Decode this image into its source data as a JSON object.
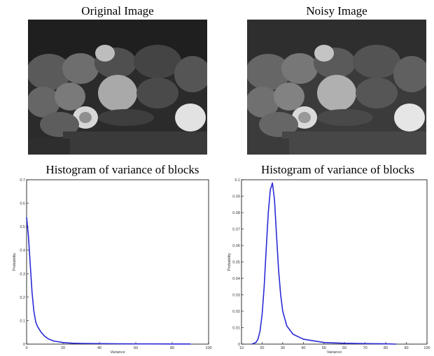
{
  "panels": {
    "original_title": "Original Image",
    "noisy_title": "Noisy Image"
  },
  "chart_data": [
    {
      "type": "line",
      "title": "Histogram of variance of blocks",
      "xlabel": "Variance",
      "ylabel": "Probability",
      "xlim": [
        0,
        100
      ],
      "ylim": [
        0,
        0.7
      ],
      "xticks": [
        0,
        20,
        40,
        60,
        80,
        100
      ],
      "yticks": [
        0,
        0.1,
        0.2,
        0.3,
        0.4,
        0.5,
        0.6,
        0.7
      ],
      "grid": false,
      "series": [
        {
          "color": "#2b2bd6",
          "x": [
            0,
            1,
            2,
            3,
            4,
            5,
            6,
            8,
            10,
            12,
            15,
            20,
            25,
            30,
            40,
            50,
            60,
            70,
            80,
            90
          ],
          "y": [
            0.54,
            0.46,
            0.34,
            0.22,
            0.14,
            0.095,
            0.075,
            0.05,
            0.033,
            0.022,
            0.013,
            0.007,
            0.004,
            0.003,
            0.002,
            0.0015,
            0.001,
            0.001,
            0.0005,
            0.0005
          ]
        }
      ]
    },
    {
      "type": "line",
      "title": "Histogram of variance of blocks",
      "xlabel": "Variance",
      "ylabel": "Probability",
      "xlim": [
        10,
        100
      ],
      "ylim": [
        0,
        0.1
      ],
      "xticks": [
        10,
        20,
        30,
        40,
        50,
        60,
        70,
        80,
        90,
        100
      ],
      "yticks": [
        0,
        0.01,
        0.02,
        0.03,
        0.04,
        0.05,
        0.06,
        0.07,
        0.08,
        0.09,
        0.1
      ],
      "grid": false,
      "series": [
        {
          "color": "#2b2bd6",
          "x": [
            15,
            17,
            18,
            19,
            20,
            21,
            22,
            23,
            24,
            25,
            26,
            27,
            28,
            29,
            30,
            32,
            35,
            40,
            50,
            60,
            70,
            80,
            85
          ],
          "y": [
            0,
            0.001,
            0.003,
            0.008,
            0.018,
            0.035,
            0.058,
            0.08,
            0.094,
            0.098,
            0.088,
            0.066,
            0.045,
            0.03,
            0.02,
            0.011,
            0.006,
            0.003,
            0.001,
            0.0005,
            0.0003,
            0.0002,
            0
          ]
        }
      ]
    }
  ]
}
